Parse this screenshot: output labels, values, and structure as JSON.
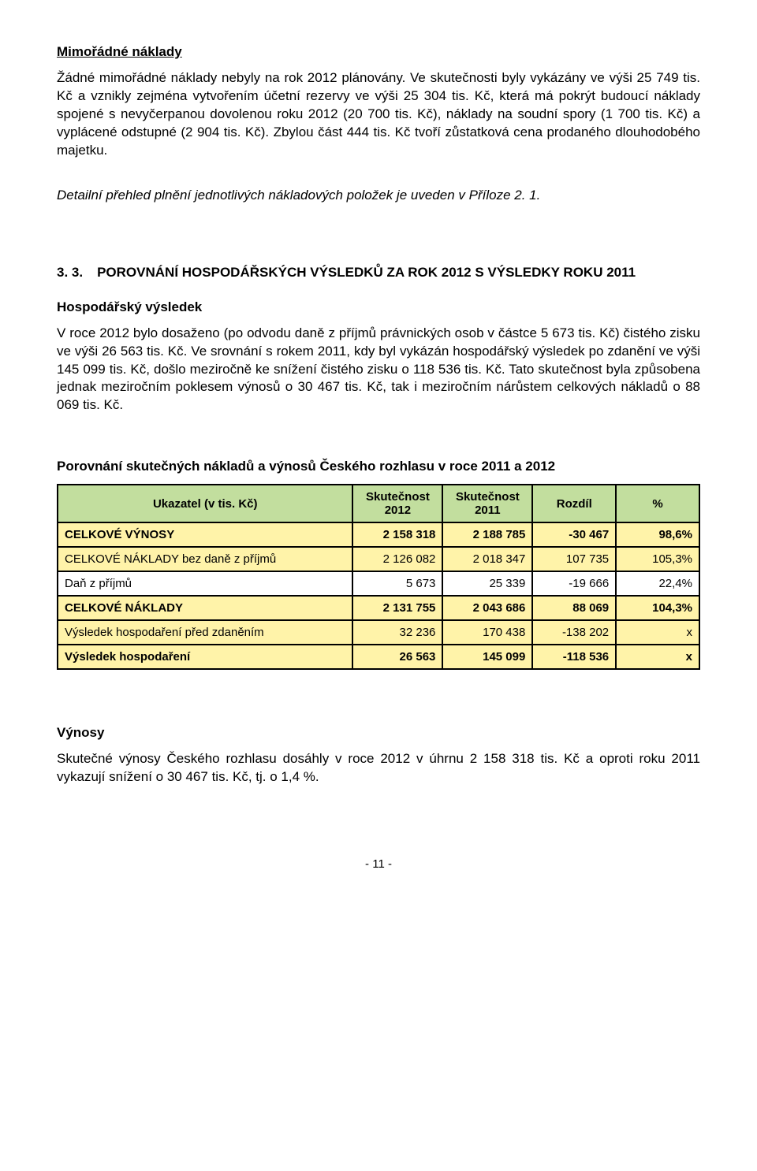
{
  "sec1": {
    "heading": "Mimořádné náklady",
    "para": "Žádné mimořádné náklady nebyly na rok 2012 plánovány. Ve skutečnosti byly vykázány ve výši 25 749 tis. Kč a vznikly zejména vytvořením účetní rezervy ve výši 25 304 tis. Kč, která má pokrýt budoucí náklady spojené s nevyčerpanou dovolenou roku 2012 (20 700 tis. Kč), náklady na soudní spory (1 700 tis. Kč) a vyplácené odstupné (2 904 tis. Kč). Zbylou část 444 tis. Kč tvoří zůstatková cena prodaného dlouhodobého majetku."
  },
  "detail_note": "Detailní přehled plnění jednotlivých nákladových položek je uveden v Příloze 2. 1.",
  "sec2": {
    "number": "3. 3.",
    "title": "POROVNÁNÍ HOSPODÁŘSKÝCH VÝSLEDKŮ ZA ROK 2012 S VÝSLEDKY ROKU 2011"
  },
  "hv": {
    "heading": "Hospodářský výsledek",
    "para": "V roce 2012 bylo dosaženo (po odvodu daně z příjmů právnických osob v částce 5 673 tis. Kč) čistého zisku ve výši 26 563 tis. Kč. Ve srovnání s rokem 2011, kdy byl vykázán hospodářský výsledek po zdanění ve výši 145 099 tis. Kč, došlo meziročně ke snížení čistého zisku o 118 536 tis. Kč. Tato skutečnost byla způsobena jednak meziročním poklesem výnosů o 30 467 tis. Kč, tak i meziročním nárůstem celkových nákladů o 88 069 tis. Kč."
  },
  "table": {
    "title": "Porovnání skutečných nákladů a výnosů Českého rozhlasu v roce 2011 a 2012",
    "headers": {
      "c0": "Ukazatel (v tis. Kč)",
      "c1": "Skutečnost 2012",
      "c2": "Skutečnost 2011",
      "c3": "Rozdíl",
      "c4": "%"
    },
    "header_bg": "#c2de9e",
    "rows": [
      {
        "label": "CELKOVÉ VÝNOSY",
        "v2012": "2 158 318",
        "v2011": "2 188 785",
        "diff": "-30 467",
        "pct": "98,6%",
        "bg": "#fff3a9",
        "bold": true
      },
      {
        "label": "CELKOVÉ NÁKLADY bez daně z příjmů",
        "v2012": "2 126 082",
        "v2011": "2 018 347",
        "diff": "107 735",
        "pct": "105,3%",
        "bg": "#fff3a9",
        "bold": false
      },
      {
        "label": "Daň z příjmů",
        "v2012": "5 673",
        "v2011": "25 339",
        "diff": "-19 666",
        "pct": "22,4%",
        "bg": "#ffffff",
        "bold": false
      },
      {
        "label": "CELKOVÉ NÁKLADY",
        "v2012": "2 131 755",
        "v2011": "2 043 686",
        "diff": "88 069",
        "pct": "104,3%",
        "bg": "#fff3a9",
        "bold": true
      },
      {
        "label": "Výsledek hospodaření před zdaněním",
        "v2012": "32 236",
        "v2011": "170 438",
        "diff": "-138 202",
        "pct": "x",
        "bg": "#fff3a9",
        "bold": false
      },
      {
        "label": "Výsledek hospodaření",
        "v2012": "26 563",
        "v2011": "145 099",
        "diff": "-118 536",
        "pct": "x",
        "bg": "#fff3a9",
        "bold": true
      }
    ]
  },
  "vynosy": {
    "heading": "Výnosy",
    "para": "Skutečné výnosy Českého rozhlasu dosáhly v roce 2012 v úhrnu 2 158 318 tis. Kč a oproti roku 2011 vykazují snížení o 30 467 tis. Kč, tj. o 1,4 %."
  },
  "page_number": "- 11 -"
}
